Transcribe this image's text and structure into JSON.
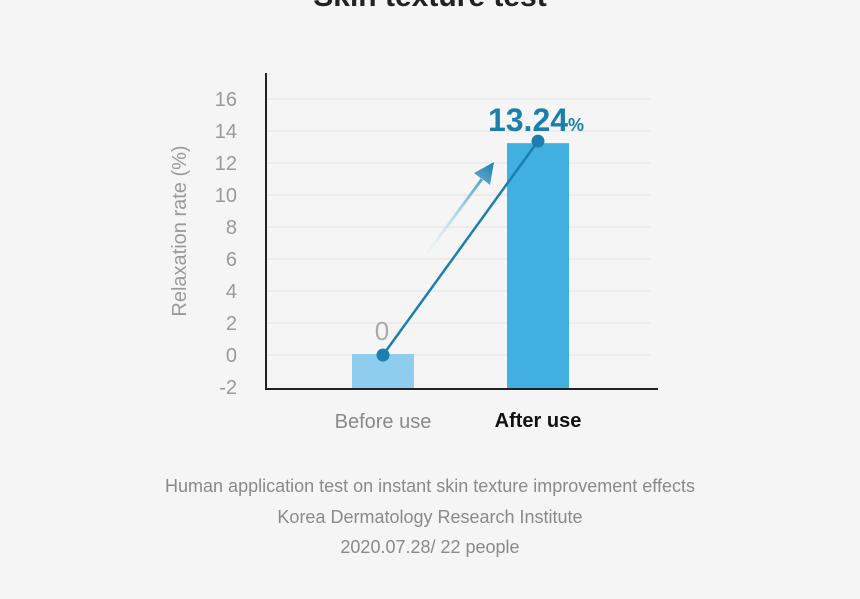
{
  "page": {
    "title": "Skin texture test"
  },
  "chart_data": {
    "type": "bar",
    "title": "Skin texture test",
    "xlabel": "",
    "ylabel": "Relaxation rate (%)",
    "ylim": [
      -2,
      17
    ],
    "yticks": [
      16,
      14,
      12,
      10,
      8,
      6,
      4,
      2,
      0,
      -2
    ],
    "grid": true,
    "categories": [
      "Before use",
      "After use"
    ],
    "values": [
      0,
      13.24
    ],
    "value_labels": [
      "0",
      "13.24"
    ],
    "value_unit": "%",
    "colors": {
      "before_bar": "#8fcdef",
      "after_bar": "#3fb0e0",
      "trend_line": "#1c7fad",
      "highlight_text": "#1b7fad",
      "axis": "#222222",
      "tick_text": "#9a9a9a",
      "grid": "#e3e3e3"
    }
  },
  "captions": {
    "line1": "Human application test on instant skin texture improvement effects",
    "line2": "Korea Dermatology Research Institute",
    "line3": "2020.07.28/ 22 people"
  }
}
